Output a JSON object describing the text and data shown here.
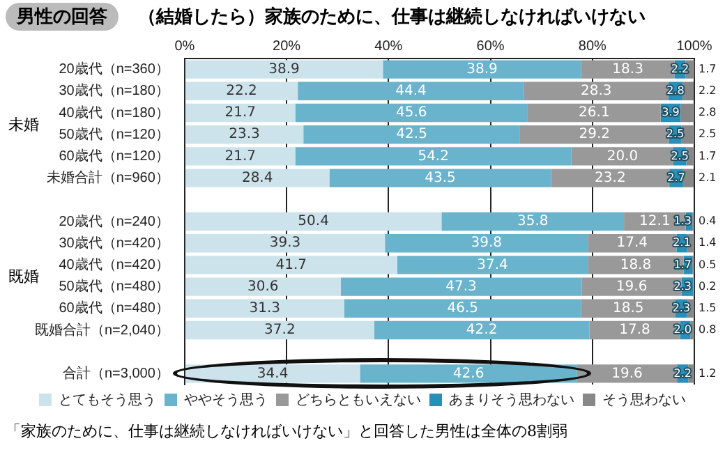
{
  "chart_data": {
    "type": "bar",
    "orientation": "horizontal",
    "stacked": true,
    "title": "男性の回答",
    "subtitle": "（結婚したら）家族のために、仕事は継続しなければいけない",
    "categories": [
      "20歳代（n=360）",
      "30歳代（n=180）",
      "40歳代（n=180）",
      "50歳代（n=120）",
      "60歳代（n=120）",
      "未婚合計（n=960）",
      null,
      "20歳代（n=240）",
      "30歳代（n=420）",
      "40歳代（n=420）",
      "50歳代（n=480）",
      "60歳代（n=480）",
      "既婚合計（n=2,040）",
      null,
      "合計（n=3,000）"
    ],
    "series": [
      {
        "name": "とてもそう思う",
        "color": "#cde3ec",
        "values": [
          38.9,
          22.2,
          21.7,
          23.3,
          21.7,
          28.4,
          null,
          50.4,
          39.3,
          41.7,
          30.6,
          31.3,
          37.2,
          null,
          34.4
        ]
      },
      {
        "name": "ややそう思う",
        "color": "#6ab3cc",
        "values": [
          38.9,
          44.4,
          45.6,
          42.5,
          54.2,
          43.5,
          null,
          35.8,
          39.8,
          37.4,
          47.3,
          46.5,
          42.2,
          null,
          42.6
        ]
      },
      {
        "name": "どちらともいえない",
        "color": "#999999",
        "values": [
          18.3,
          28.3,
          26.1,
          29.2,
          20.0,
          23.2,
          null,
          12.1,
          17.4,
          18.8,
          19.6,
          18.5,
          17.8,
          null,
          19.6
        ],
        "value_labels": [
          "18.3",
          "28.3",
          "26.1",
          "29.2",
          "20.0",
          "23.2",
          null,
          "12.1",
          "17.4",
          "18.8",
          "19.6",
          "18.5",
          "17.8",
          null,
          "19.6"
        ]
      },
      {
        "name": "あまりそう思わない",
        "color": "#2a8fb8",
        "values": [
          2.2,
          2.8,
          3.9,
          2.5,
          2.5,
          2.7,
          null,
          1.3,
          2.1,
          1.7,
          2.3,
          2.3,
          2.0,
          null,
          2.2
        ],
        "value_labels": [
          "2.2",
          "2.8",
          "3.9",
          "2.5",
          "2.5",
          "2.7",
          null,
          "1.3",
          "2.1",
          "1.7",
          "2.3",
          "2.3",
          "2.0",
          null,
          "2.2"
        ]
      },
      {
        "name": "そう思わない",
        "color": "#888888",
        "values": [
          1.7,
          2.2,
          2.8,
          2.5,
          1.7,
          2.1,
          null,
          0.4,
          1.4,
          0.5,
          0.2,
          1.5,
          0.8,
          null,
          1.2
        ]
      }
    ],
    "xlim": [
      0,
      100
    ],
    "xticks": [
      {
        "value": 0,
        "label": "0%"
      },
      {
        "value": 20,
        "label": "20%"
      },
      {
        "value": 40,
        "label": "40%"
      },
      {
        "value": 60,
        "label": "60%"
      },
      {
        "value": 80,
        "label": "80%"
      },
      {
        "value": 100,
        "label": "100%"
      }
    ],
    "grid": "x",
    "legend": "bottom",
    "data_labels": true,
    "annotations": [
      "未婚",
      "既婚",
      "「家族のために、仕事は継続しなければいけない」と回答した男性は全体の8割弱"
    ]
  }
}
